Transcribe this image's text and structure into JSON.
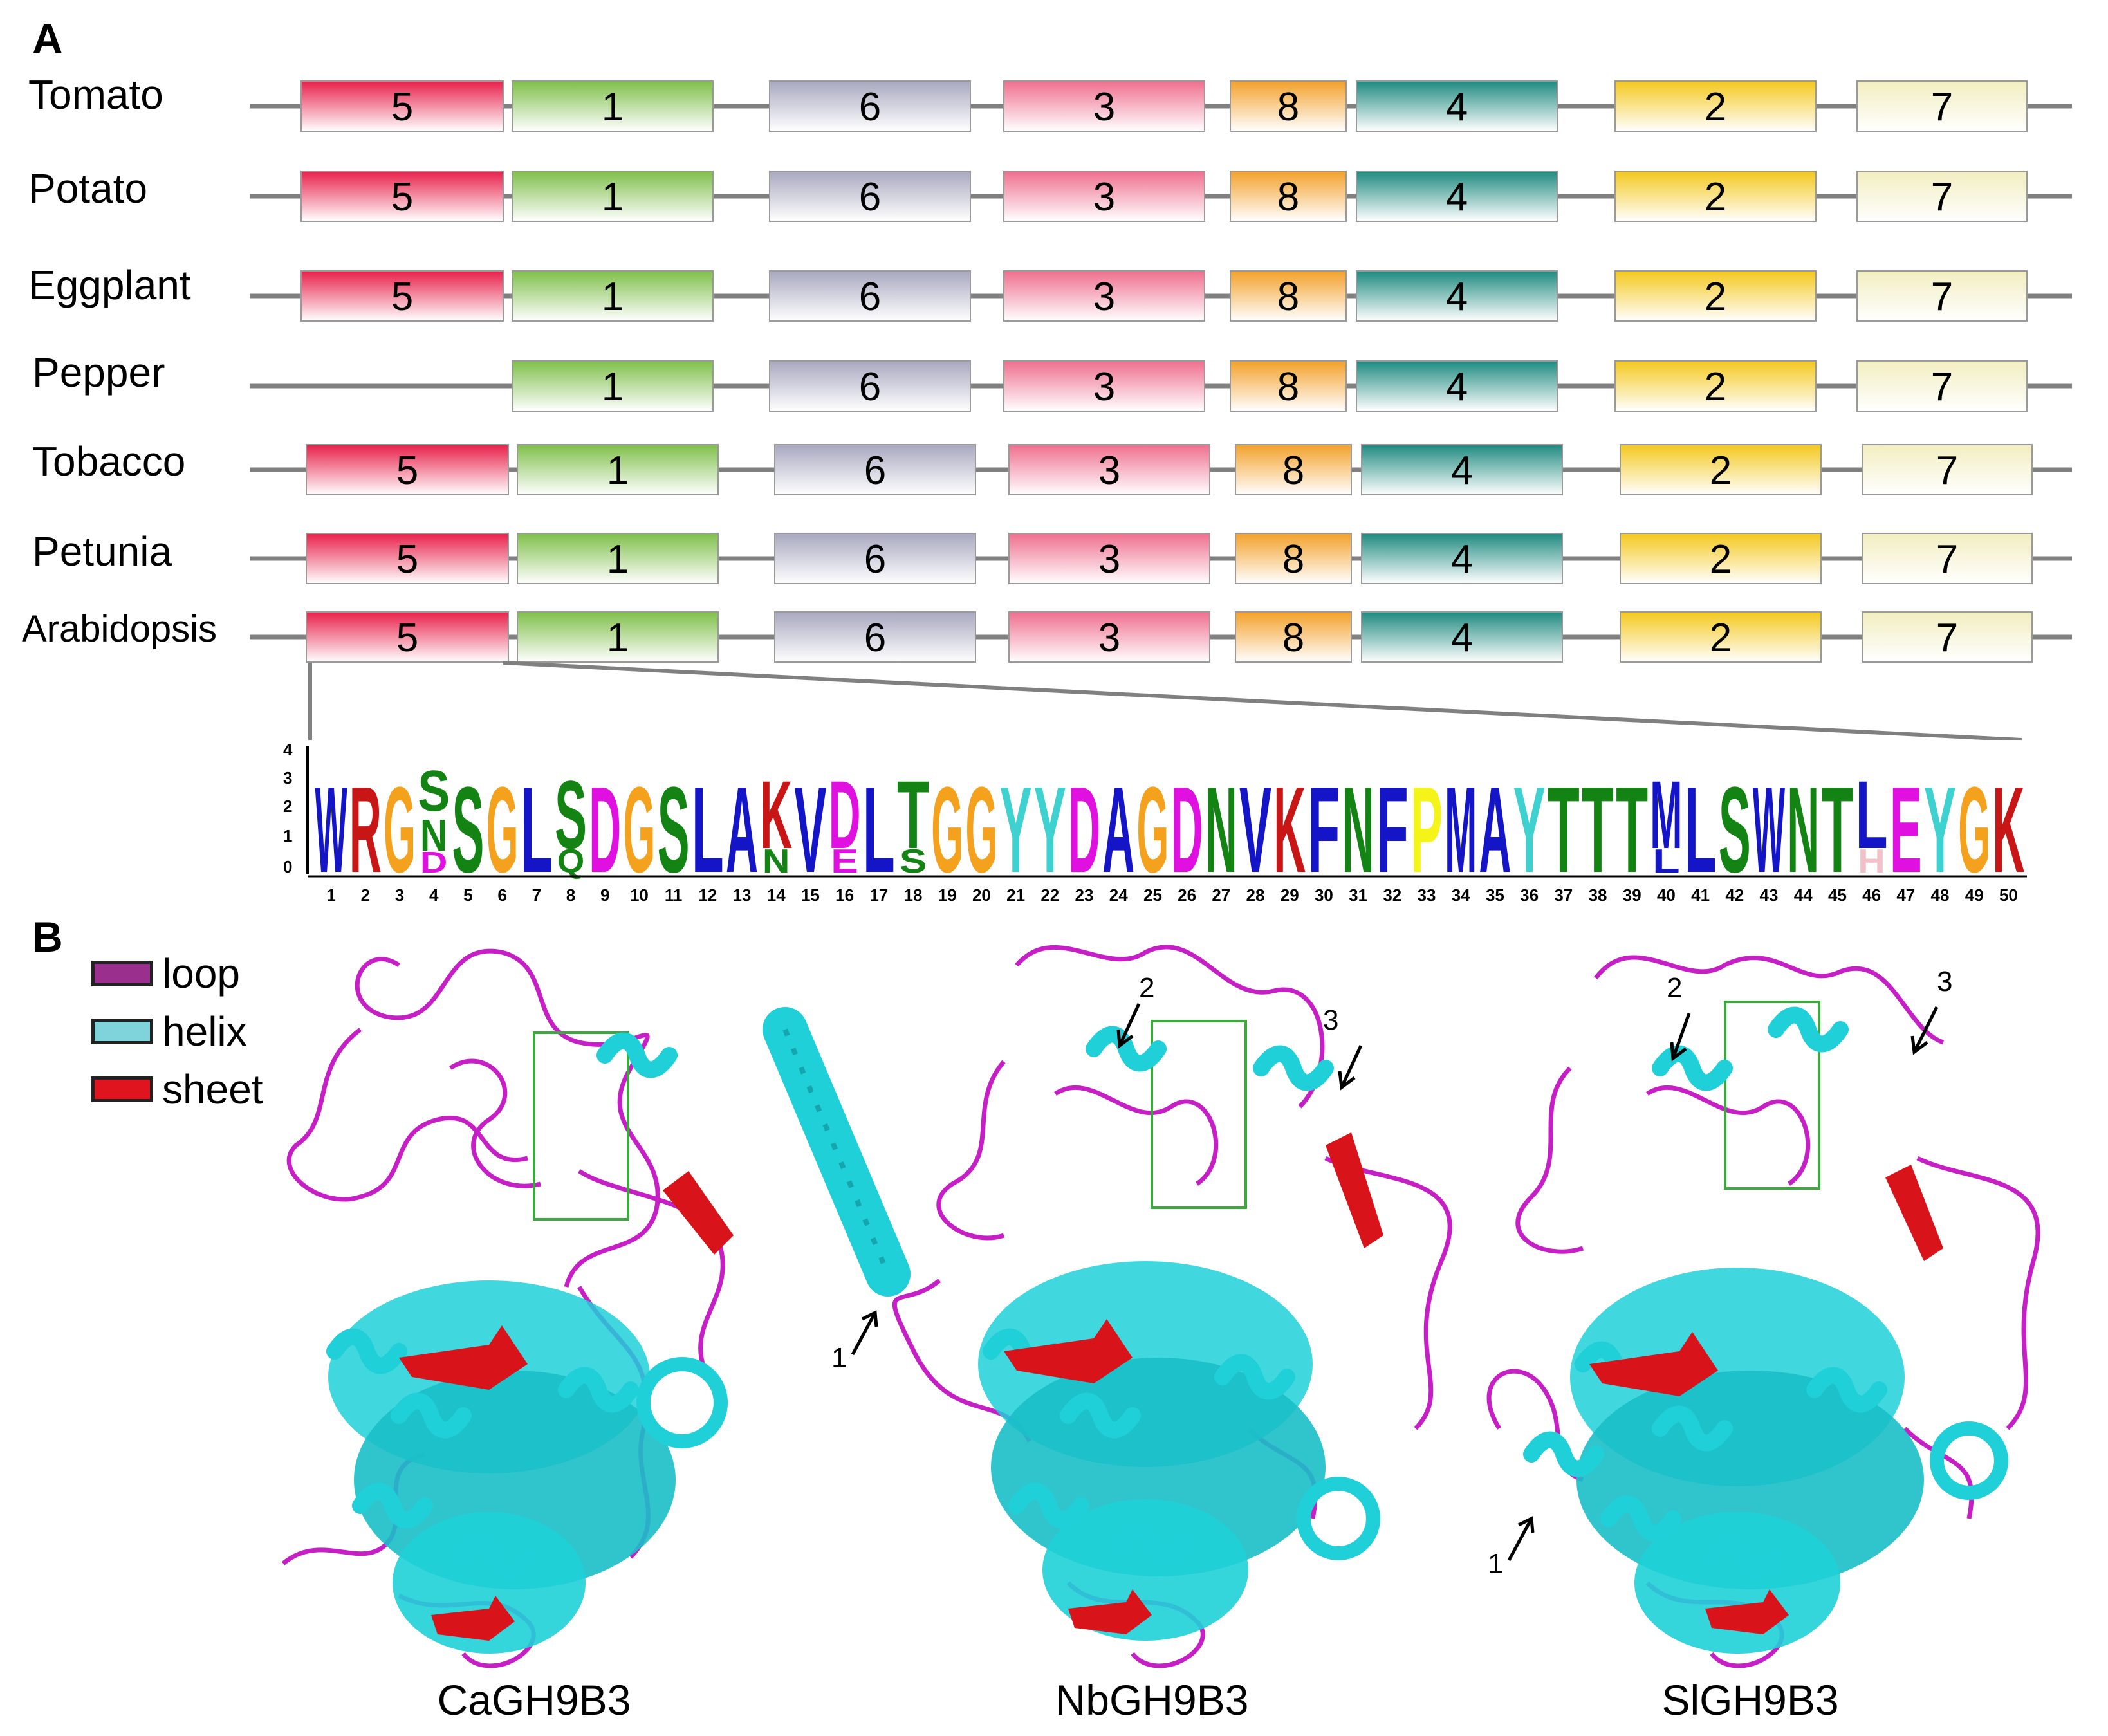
{
  "panel_a": {
    "letter": "A",
    "species": [
      {
        "name": "Tomato",
        "motifs": [
          "5",
          "1",
          "6",
          "3",
          "8",
          "4",
          "2",
          "7"
        ]
      },
      {
        "name": "Potato",
        "motifs": [
          "5",
          "1",
          "6",
          "3",
          "8",
          "4",
          "2",
          "7"
        ]
      },
      {
        "name": "Eggplant",
        "motifs": [
          "5",
          "1",
          "6",
          "3",
          "8",
          "4",
          "2",
          "7"
        ]
      },
      {
        "name": "Pepper",
        "motifs": [
          "1",
          "6",
          "3",
          "8",
          "4",
          "2",
          "7"
        ]
      },
      {
        "name": "Tobacco",
        "motifs": [
          "5",
          "1",
          "6",
          "3",
          "8",
          "4",
          "2",
          "7"
        ]
      },
      {
        "name": "Petunia",
        "motifs": [
          "5",
          "1",
          "6",
          "3",
          "8",
          "4",
          "2",
          "7"
        ]
      },
      {
        "name": "Arabidopsis",
        "motifs": [
          "5",
          "1",
          "6",
          "3",
          "8",
          "4",
          "2",
          "7"
        ]
      }
    ],
    "motif_colors": {
      "5": "#e8204a",
      "1": "#7fbf4a",
      "6": "#a8a8c0",
      "3": "#ef6f8e",
      "8": "#f3a12a",
      "4": "#1e8a80",
      "2": "#f4c81e",
      "7": "#f2eec0"
    },
    "logo": {
      "y_ticks": [
        "4",
        "3",
        "2",
        "1",
        "0"
      ],
      "residues": [
        {
          "pos": "1",
          "top": "W",
          "bottom": ""
        },
        {
          "pos": "2",
          "top": "R",
          "bottom": ""
        },
        {
          "pos": "3",
          "top": "G",
          "bottom": ""
        },
        {
          "pos": "4",
          "top": "S",
          "mid": "N",
          "bottom": "D"
        },
        {
          "pos": "5",
          "top": "S",
          "bottom": ""
        },
        {
          "pos": "6",
          "top": "G",
          "bottom": ""
        },
        {
          "pos": "7",
          "top": "L",
          "bottom": ""
        },
        {
          "pos": "8",
          "top": "S",
          "bottom": "Q"
        },
        {
          "pos": "9",
          "top": "D",
          "bottom": ""
        },
        {
          "pos": "10",
          "top": "G",
          "bottom": ""
        },
        {
          "pos": "11",
          "top": "S",
          "bottom": ""
        },
        {
          "pos": "12",
          "top": "L",
          "bottom": ""
        },
        {
          "pos": "13",
          "top": "A",
          "bottom": ""
        },
        {
          "pos": "14",
          "top": "K",
          "bottom": "N"
        },
        {
          "pos": "15",
          "top": "V",
          "bottom": ""
        },
        {
          "pos": "16",
          "top": "D",
          "bottom": "E"
        },
        {
          "pos": "17",
          "top": "L",
          "bottom": ""
        },
        {
          "pos": "18",
          "top": "T",
          "bottom": "S"
        },
        {
          "pos": "19",
          "top": "G",
          "bottom": ""
        },
        {
          "pos": "20",
          "top": "G",
          "bottom": ""
        },
        {
          "pos": "21",
          "top": "Y",
          "bottom": ""
        },
        {
          "pos": "22",
          "top": "Y",
          "bottom": ""
        },
        {
          "pos": "23",
          "top": "D",
          "bottom": ""
        },
        {
          "pos": "24",
          "top": "A",
          "bottom": ""
        },
        {
          "pos": "25",
          "top": "G",
          "bottom": ""
        },
        {
          "pos": "26",
          "top": "D",
          "bottom": ""
        },
        {
          "pos": "27",
          "top": "N",
          "bottom": ""
        },
        {
          "pos": "28",
          "top": "V",
          "bottom": ""
        },
        {
          "pos": "29",
          "top": "K",
          "bottom": ""
        },
        {
          "pos": "30",
          "top": "F",
          "bottom": ""
        },
        {
          "pos": "31",
          "top": "N",
          "bottom": ""
        },
        {
          "pos": "32",
          "top": "F",
          "bottom": ""
        },
        {
          "pos": "33",
          "top": "P",
          "bottom": ""
        },
        {
          "pos": "34",
          "top": "M",
          "bottom": ""
        },
        {
          "pos": "35",
          "top": "A",
          "bottom": ""
        },
        {
          "pos": "36",
          "top": "Y",
          "bottom": ""
        },
        {
          "pos": "37",
          "top": "T",
          "bottom": ""
        },
        {
          "pos": "38",
          "top": "T",
          "bottom": ""
        },
        {
          "pos": "39",
          "top": "T",
          "bottom": ""
        },
        {
          "pos": "40",
          "top": "M",
          "bottom": "L"
        },
        {
          "pos": "41",
          "top": "L",
          "bottom": ""
        },
        {
          "pos": "42",
          "top": "S",
          "bottom": ""
        },
        {
          "pos": "43",
          "top": "W",
          "bottom": ""
        },
        {
          "pos": "44",
          "top": "N",
          "bottom": ""
        },
        {
          "pos": "45",
          "top": "T",
          "bottom": ""
        },
        {
          "pos": "46",
          "top": "L",
          "bottom": "H"
        },
        {
          "pos": "47",
          "top": "E",
          "bottom": ""
        },
        {
          "pos": "48",
          "top": "Y",
          "bottom": ""
        },
        {
          "pos": "49",
          "top": "G",
          "bottom": ""
        },
        {
          "pos": "50",
          "top": "K",
          "bottom": ""
        }
      ],
      "residue_colors": {
        "W": "#1515c8",
        "R": "#c81515",
        "G": "#f4a11e",
        "S": "#138413",
        "N": "#138413",
        "D": "#e011e0",
        "L": "#1515c8",
        "Q": "#138413",
        "A": "#1515c8",
        "K": "#c81515",
        "V": "#1515c8",
        "E": "#e011e0",
        "T": "#138413",
        "Y": "#3fd0d0",
        "F": "#1515c8",
        "P": "#f4f418",
        "M": "#1515c8",
        "H": "#f2c0c8"
      }
    }
  },
  "panel_b": {
    "letter": "B",
    "legend": [
      {
        "label": "loop",
        "color": "#9b2f8e"
      },
      {
        "label": "helix",
        "color": "#7fd4dc"
      },
      {
        "label": "sheet",
        "color": "#e0141e"
      }
    ],
    "structures": [
      {
        "name": "CaGH9B3",
        "arrows": []
      },
      {
        "name": "NbGH9B3",
        "arrows": [
          "1",
          "2",
          "3"
        ]
      },
      {
        "name": "SlGH9B3",
        "arrows": [
          "1",
          "2",
          "3"
        ]
      }
    ],
    "colors": {
      "loop": "#c61fc6",
      "helix": "#1fd0d8",
      "sheet": "#d8141a",
      "box": "#3aaa3a"
    }
  }
}
